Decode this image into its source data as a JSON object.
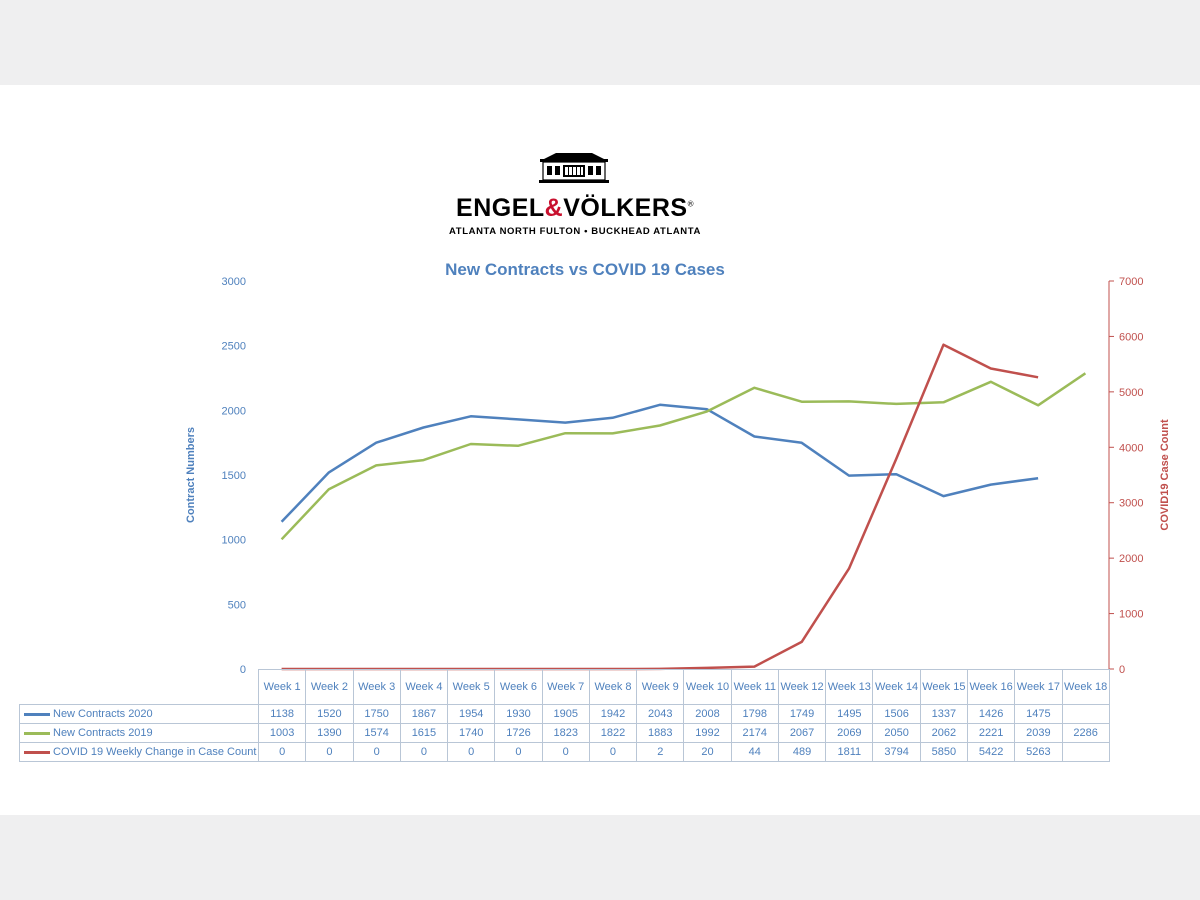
{
  "logo": {
    "brand_left": "ENGEL",
    "brand_amp": "&",
    "brand_right": "VÖLKERS",
    "brand_mark": "®",
    "subtitle": "ATLANTA NORTH FULTON • BUCKHEAD ATLANTA"
  },
  "chart_data": {
    "type": "line",
    "title": "New Contracts vs COVID 19 Cases",
    "categories": [
      "Week 1",
      "Week 2",
      "Week 3",
      "Week 4",
      "Week 5",
      "Week 6",
      "Week 7",
      "Week 8",
      "Week 9",
      "Week 10",
      "Week 11",
      "Week 12",
      "Week 13",
      "Week 14",
      "Week 15",
      "Week 16",
      "Week 17",
      "Week 18"
    ],
    "y_left": {
      "label": "Contract Numbers",
      "range": [
        0,
        3000
      ],
      "ticks": [
        0,
        500,
        1000,
        1500,
        2000,
        2500,
        3000
      ],
      "color": "#4f81bd"
    },
    "y_right": {
      "label": "COVID19 Case Count",
      "range": [
        0,
        7000
      ],
      "ticks": [
        0,
        1000,
        2000,
        3000,
        4000,
        5000,
        6000,
        7000
      ],
      "color": "#c0504d"
    },
    "series": [
      {
        "name": "New Contracts 2020",
        "axis": "left",
        "color": "#4f81bd",
        "values": [
          1138,
          1520,
          1750,
          1867,
          1954,
          1930,
          1905,
          1942,
          2043,
          2008,
          1798,
          1749,
          1495,
          1506,
          1337,
          1426,
          1475,
          null
        ]
      },
      {
        "name": "New Contracts 2019",
        "axis": "left",
        "color": "#9bbb59",
        "values": [
          1003,
          1390,
          1574,
          1615,
          1740,
          1726,
          1823,
          1822,
          1883,
          1992,
          2174,
          2067,
          2069,
          2050,
          2062,
          2221,
          2039,
          2286
        ]
      },
      {
        "name": "COVID 19 Weekly Change in Case Count",
        "axis": "right",
        "color": "#c0504d",
        "values": [
          0,
          0,
          0,
          0,
          0,
          0,
          0,
          0,
          2,
          20,
          44,
          489,
          1811,
          3794,
          5850,
          5422,
          5263,
          null
        ]
      }
    ],
    "legend": "data-table below chart"
  }
}
